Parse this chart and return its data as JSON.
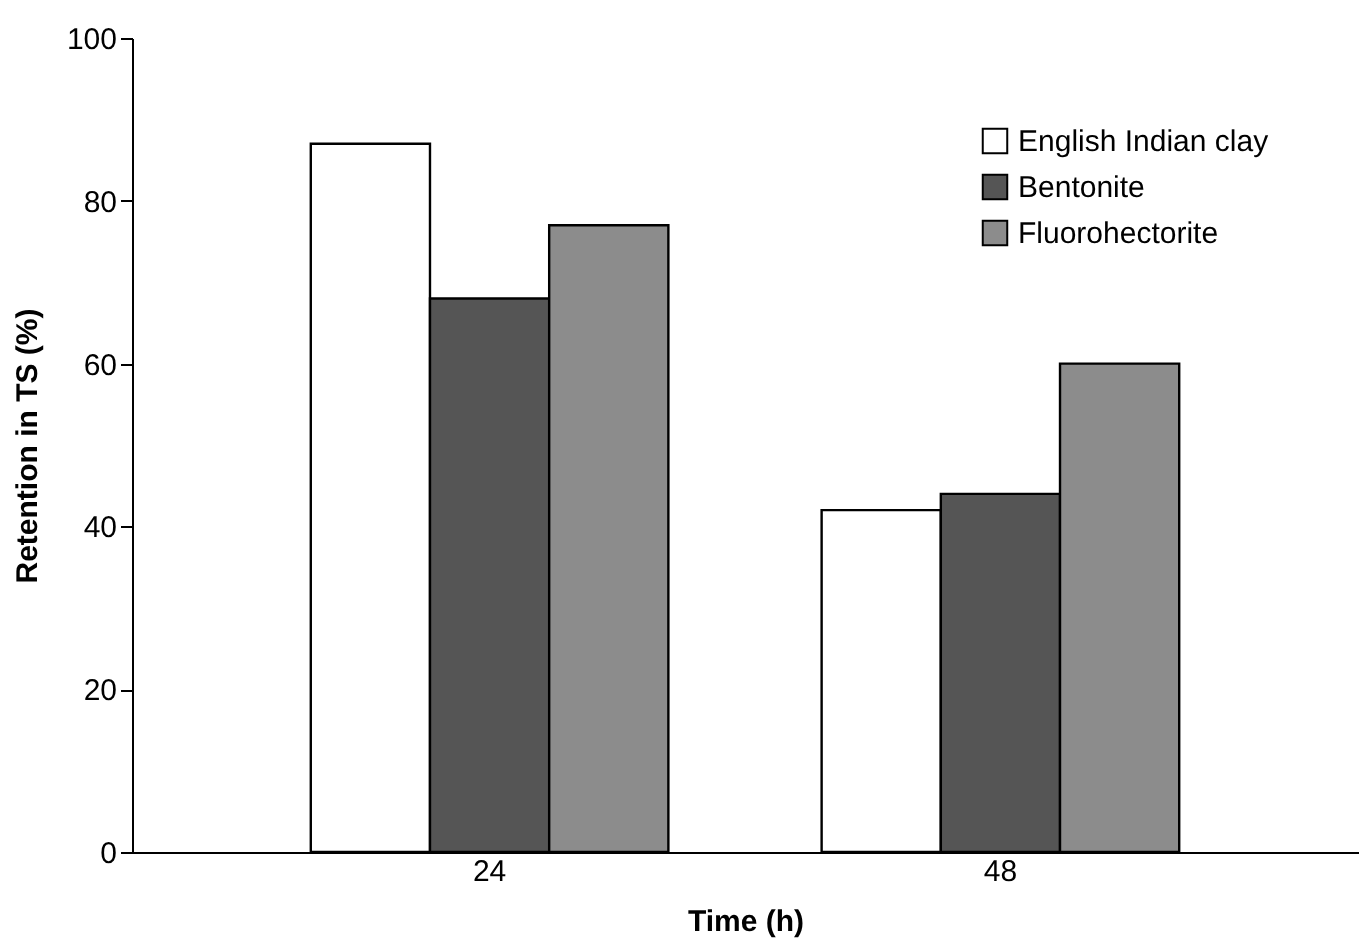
{
  "chart_data": {
    "type": "bar",
    "xlabel": "Time (h)",
    "ylabel": "Retention in TS (%)",
    "categories": [
      "24",
      "48"
    ],
    "series": [
      {
        "name": "English Indian clay",
        "color": "#ffffff",
        "values": [
          87,
          42
        ]
      },
      {
        "name": "Bentonite",
        "color": "#555555",
        "values": [
          68,
          44
        ]
      },
      {
        "name": "Fluorohectorite",
        "color": "#8c8c8c",
        "values": [
          77,
          60
        ]
      }
    ],
    "ylim": [
      0,
      100
    ],
    "yticks": [
      0,
      20,
      40,
      60,
      80,
      100
    ],
    "grid": false,
    "legend": "top right"
  }
}
